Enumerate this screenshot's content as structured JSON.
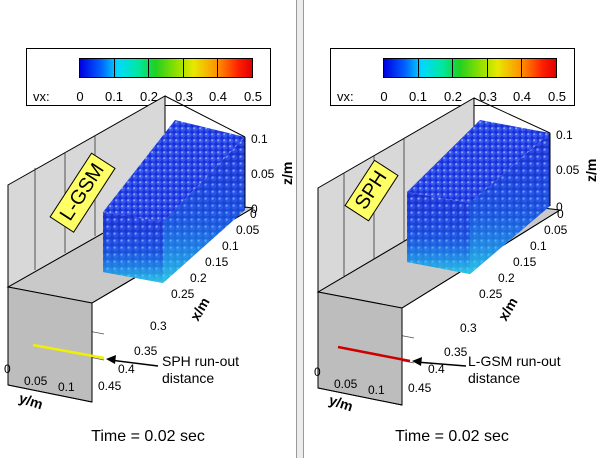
{
  "panels": [
    {
      "method": "L-GSM",
      "legend": {
        "variable": "vx:",
        "labels": [
          "0",
          "0.1",
          "0.2",
          "0.3",
          "0.4",
          "0.5"
        ]
      },
      "axes": {
        "z_title": "z/m",
        "z_ticks": [
          "0.1",
          "0.05",
          "0"
        ],
        "x_title": "x/m",
        "x_ticks": [
          "0",
          "0.05",
          "0.1",
          "0.15",
          "0.2",
          "0.25",
          "0.3",
          "0.35",
          "0.4",
          "0.45"
        ],
        "y_title": "y/m",
        "y_ticks": [
          "0",
          "0.05",
          "0.1"
        ]
      },
      "annotation": [
        "SPH run-out",
        "distance"
      ],
      "runout_line_color": "#f0f000",
      "time_label": "Time = 0.02 sec"
    },
    {
      "method": "SPH",
      "legend": {
        "variable": "vx:",
        "labels": [
          "0",
          "0.1",
          "0.2",
          "0.3",
          "0.4",
          "0.5"
        ]
      },
      "axes": {
        "z_title": "z/m",
        "z_ticks": [
          "0.1",
          "0.05",
          "0"
        ],
        "x_title": "x/m",
        "x_ticks": [
          "0",
          "0.05",
          "0.1",
          "0.15",
          "0.2",
          "0.25",
          "0.3",
          "0.35",
          "0.4",
          "0.45"
        ],
        "y_title": "y/m",
        "y_ticks": [
          "0",
          "0.05",
          "0.1"
        ]
      },
      "annotation": [
        "L-GSM run-out",
        "distance"
      ],
      "runout_line_color": "#cc0000",
      "time_label": "Time = 0.02 sec"
    }
  ]
}
